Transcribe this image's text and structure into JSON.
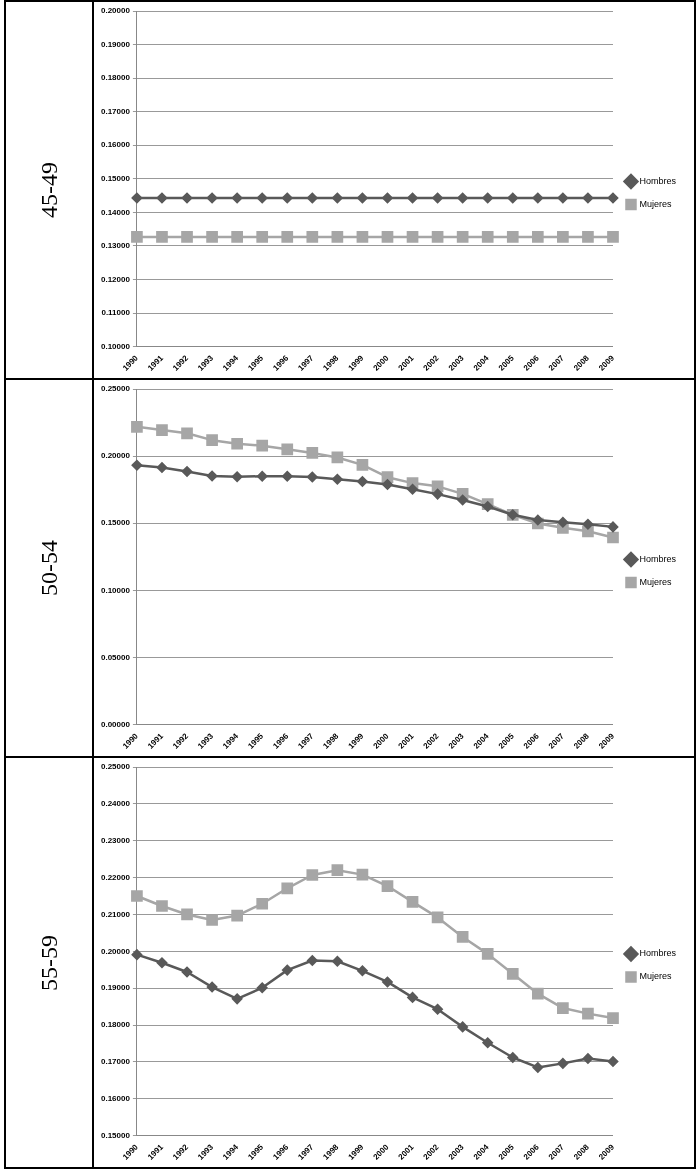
{
  "chart_data": [
    {
      "type": "line",
      "ylabel": "45-49",
      "categories": [
        "1990",
        "1991",
        "1992",
        "1993",
        "1994",
        "1995",
        "1996",
        "1997",
        "1998",
        "1999",
        "2000",
        "2001",
        "2002",
        "2003",
        "2004",
        "2005",
        "2006",
        "2007",
        "2008",
        "2009"
      ],
      "series": [
        {
          "name": "Hombres",
          "color": "#595959",
          "marker": "diamond",
          "values": [
            0.1443,
            0.1443,
            0.1443,
            0.1443,
            0.1443,
            0.1443,
            0.1443,
            0.1443,
            0.1443,
            0.1443,
            0.1443,
            0.1443,
            0.1443,
            0.1443,
            0.1443,
            0.1443,
            0.1443,
            0.1443,
            0.1443,
            0.1443
          ]
        },
        {
          "name": "Mujeres",
          "color": "#a6a6a6",
          "marker": "square",
          "values": [
            0.1327,
            0.1327,
            0.1327,
            0.1327,
            0.1327,
            0.1327,
            0.1327,
            0.1327,
            0.1327,
            0.1327,
            0.1327,
            0.1327,
            0.1327,
            0.1327,
            0.1327,
            0.1327,
            0.1327,
            0.1327,
            0.1327,
            0.1327
          ]
        }
      ],
      "ylim": [
        0.1,
        0.2
      ],
      "yticks": [
        {
          "value": 0.1,
          "label": "0.10000"
        },
        {
          "value": 0.11,
          "label": "0.11000"
        },
        {
          "value": 0.12,
          "label": "0.12000"
        },
        {
          "value": 0.13,
          "label": "0.13000"
        },
        {
          "value": 0.14,
          "label": "0.14000"
        },
        {
          "value": 0.15,
          "label": "0.15000"
        },
        {
          "value": 0.16,
          "label": "0.16000"
        },
        {
          "value": 0.17,
          "label": "0.17000"
        },
        {
          "value": 0.18,
          "label": "0.18000"
        },
        {
          "value": 0.19,
          "label": "0.19000"
        },
        {
          "value": 0.2,
          "label": "0.20000"
        }
      ],
      "grid": "y",
      "legend": "right"
    },
    {
      "type": "line",
      "ylabel": "50-54",
      "categories": [
        "1990",
        "1991",
        "1992",
        "1993",
        "1994",
        "1995",
        "1996",
        "1997",
        "1998",
        "1999",
        "2000",
        "2001",
        "2002",
        "2003",
        "2004",
        "2005",
        "2006",
        "2007",
        "2008",
        "2009"
      ],
      "series": [
        {
          "name": "Hombres",
          "color": "#595959",
          "marker": "diamond",
          "values": [
            0.1932,
            0.1915,
            0.1886,
            0.1852,
            0.1847,
            0.185,
            0.185,
            0.1845,
            0.1828,
            0.1811,
            0.1789,
            0.1753,
            0.1717,
            0.1673,
            0.1625,
            0.1563,
            0.1524,
            0.1507,
            0.1493,
            0.1473
          ]
        },
        {
          "name": "Mujeres",
          "color": "#a6a6a6",
          "marker": "square",
          "values": [
            0.2218,
            0.2194,
            0.217,
            0.2119,
            0.2092,
            0.2078,
            0.2051,
            0.2024,
            0.199,
            0.1935,
            0.1843,
            0.1799,
            0.1775,
            0.1719,
            0.1642,
            0.1563,
            0.1498,
            0.1466,
            0.144,
            0.1394
          ]
        }
      ],
      "ylim": [
        0,
        0.25
      ],
      "yticks": [
        {
          "value": 0,
          "label": "0.00000"
        },
        {
          "value": 0.05,
          "label": "0.05000"
        },
        {
          "value": 0.1,
          "label": "0.10000"
        },
        {
          "value": 0.15,
          "label": "0.15000"
        },
        {
          "value": 0.2,
          "label": "0.20000"
        },
        {
          "value": 0.25,
          "label": "0.25000"
        }
      ],
      "grid": "y",
      "legend": "right"
    },
    {
      "type": "line",
      "ylabel": "55-59",
      "categories": [
        "1990",
        "1991",
        "1992",
        "1993",
        "1994",
        "1995",
        "1996",
        "1997",
        "1998",
        "1999",
        "2000",
        "2001",
        "2002",
        "2003",
        "2004",
        "2005",
        "2006",
        "2007",
        "2008",
        "2009"
      ],
      "series": [
        {
          "name": "Hombres",
          "color": "#595959",
          "marker": "diamond",
          "values": [
            0.1991,
            0.1969,
            0.1944,
            0.1903,
            0.1871,
            0.1901,
            0.1949,
            0.1975,
            0.1973,
            0.1947,
            0.1917,
            0.1875,
            0.1843,
            0.1795,
            0.1752,
            0.1712,
            0.1685,
            0.1696,
            0.1709,
            0.1701
          ]
        },
        {
          "name": "Mujeres",
          "color": "#a6a6a6",
          "marker": "square",
          "values": [
            0.215,
            0.2123,
            0.21,
            0.2085,
            0.2097,
            0.2129,
            0.2171,
            0.2207,
            0.222,
            0.2208,
            0.2177,
            0.2134,
            0.2092,
            0.2039,
            0.1993,
            0.1939,
            0.1885,
            0.1846,
            0.1831,
            0.1819
          ]
        }
      ],
      "ylim": [
        0.15,
        0.25
      ],
      "yticks": [
        {
          "value": 0.15,
          "label": "0.15000"
        },
        {
          "value": 0.16,
          "label": "0.16000"
        },
        {
          "value": 0.17,
          "label": "0.17000"
        },
        {
          "value": 0.18,
          "label": "0.18000"
        },
        {
          "value": 0.19,
          "label": "0.19000"
        },
        {
          "value": 0.2,
          "label": "0.20000"
        },
        {
          "value": 0.21,
          "label": "0.21000"
        },
        {
          "value": 0.22,
          "label": "0.22000"
        },
        {
          "value": 0.23,
          "label": "0.23000"
        },
        {
          "value": 0.24,
          "label": "0.24000"
        },
        {
          "value": 0.25,
          "label": "0.25000"
        }
      ],
      "grid": "y",
      "legend": "right"
    }
  ]
}
